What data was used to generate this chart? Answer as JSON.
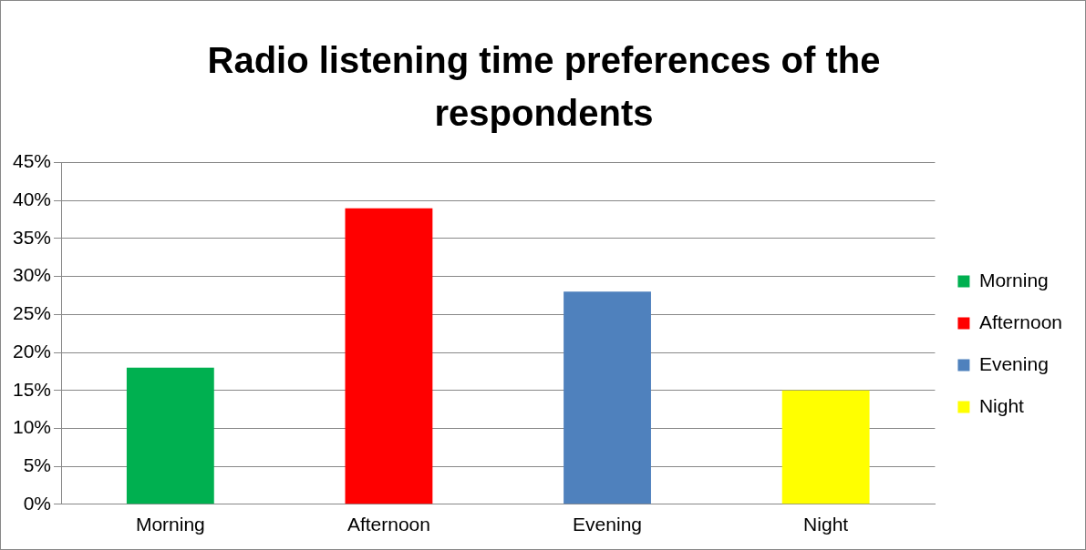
{
  "chart_data": {
    "type": "bar",
    "title": "Radio listening time preferences of the respondents",
    "categories": [
      "Morning",
      "Afternoon",
      "Evening",
      "Night"
    ],
    "series": [
      {
        "name": "Morning",
        "color": "#00b050",
        "values": [
          18,
          null,
          null,
          null
        ]
      },
      {
        "name": "Afternoon",
        "color": "#ff0000",
        "values": [
          null,
          39,
          null,
          null
        ]
      },
      {
        "name": "Evening",
        "color": "#4f81bd",
        "values": [
          null,
          null,
          28,
          null
        ]
      },
      {
        "name": "Night",
        "color": "#ffff00",
        "values": [
          null,
          null,
          null,
          15
        ]
      }
    ],
    "ylim": [
      0,
      45
    ],
    "yticks": [
      {
        "value": 0,
        "label": "0%"
      },
      {
        "value": 5,
        "label": "5%"
      },
      {
        "value": 10,
        "label": "10%"
      },
      {
        "value": 15,
        "label": "15%"
      },
      {
        "value": 20,
        "label": "20%"
      },
      {
        "value": 25,
        "label": "25%"
      },
      {
        "value": 30,
        "label": "30%"
      },
      {
        "value": 35,
        "label": "35%"
      },
      {
        "value": 40,
        "label": "40%"
      },
      {
        "value": 45,
        "label": "45%"
      }
    ],
    "grid": "y",
    "legend": "right"
  }
}
